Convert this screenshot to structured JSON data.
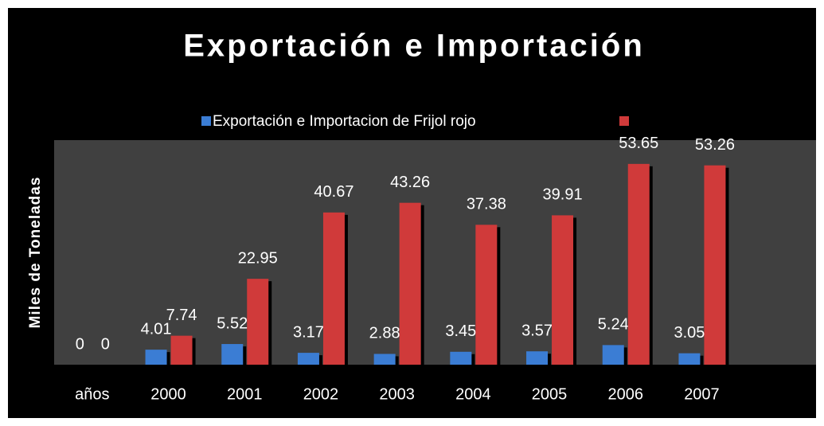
{
  "chart_data": {
    "type": "bar",
    "title": "Exportación e Importación",
    "ylabel": "Miles de Toneladas",
    "categories": [
      "años",
      "2000",
      "2001",
      "2002",
      "2003",
      "2004",
      "2005",
      "2006",
      "2007",
      null
    ],
    "series": [
      {
        "name": "Exportación e Importacion  de Frijol rojo",
        "color": "#3b7dd4",
        "values": [
          0,
          4.01,
          5.52,
          3.17,
          2.88,
          3.45,
          3.57,
          5.24,
          3.05,
          null
        ]
      },
      {
        "color": "#d03a3a",
        "values": [
          0,
          7.74,
          22.95,
          40.67,
          43.26,
          37.38,
          39.91,
          53.65,
          53.26,
          null
        ]
      }
    ],
    "ylim": [
      0,
      60
    ]
  }
}
